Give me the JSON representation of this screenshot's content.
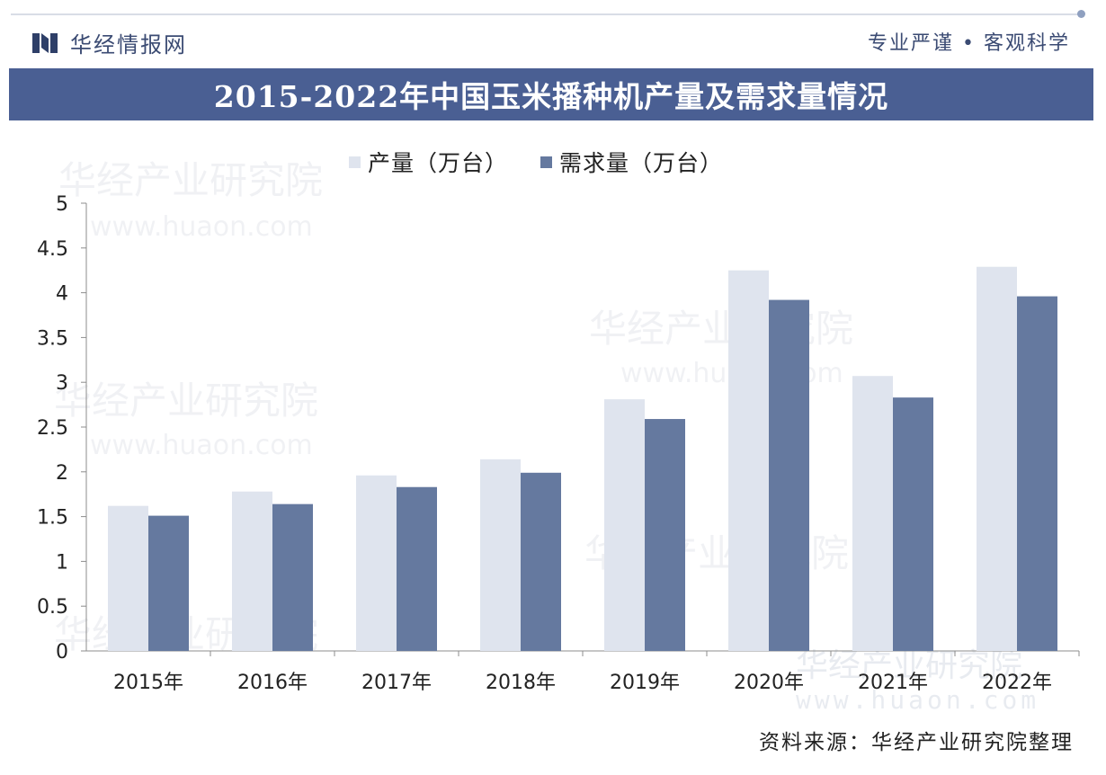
{
  "header": {
    "brand": "华经情报网",
    "slogan": "专业严谨 • 客观科学"
  },
  "watermark": {
    "cn": "华经产业研究院",
    "url": "www.huaon.com"
  },
  "footer": {
    "source": "资料来源：华经产业研究院整理"
  },
  "colors": {
    "title_bar": "#4a5f93",
    "production": "#dfe4ee",
    "demand": "#65799f",
    "axis": "#8c8c8c"
  },
  "chart_data": {
    "type": "bar",
    "title": "2015-2022年中国玉米播种机产量及需求量情况",
    "xlabel": "",
    "ylabel": "",
    "categories": [
      "2015年",
      "2016年",
      "2017年",
      "2018年",
      "2019年",
      "2020年",
      "2021年",
      "2022年"
    ],
    "series": [
      {
        "name": "产量（万台）",
        "values": [
          1.62,
          1.78,
          1.96,
          2.14,
          2.81,
          4.25,
          3.07,
          4.29
        ]
      },
      {
        "name": "需求量（万台）",
        "values": [
          1.51,
          1.64,
          1.83,
          1.99,
          2.59,
          3.92,
          2.83,
          3.96
        ]
      }
    ],
    "ylim": [
      0,
      5
    ],
    "yticks": [
      "0",
      "0.5",
      "1",
      "1.5",
      "2",
      "2.5",
      "3",
      "3.5",
      "4",
      "4.5",
      "5"
    ],
    "grid": false,
    "legend_position": "top"
  }
}
